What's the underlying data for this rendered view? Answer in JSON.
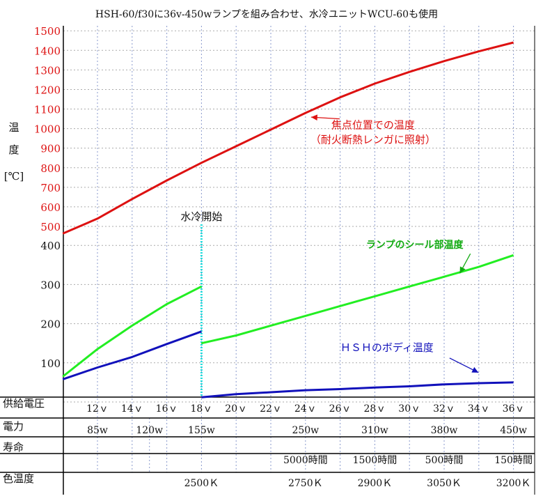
{
  "chart_data": {
    "type": "line",
    "title": "HSH-60/f30に36v-450wランプを組み合わせ、水冷ユニットWCU-60も使用",
    "ylabel": [
      "温",
      "度",
      "[℃]"
    ],
    "y_upper_ticks": [
      "1500",
      "1400",
      "1300",
      "1200",
      "1100",
      "1000",
      "900",
      "800",
      "700",
      "600",
      "500"
    ],
    "y_lower_ticks": [
      "400",
      "300",
      "200",
      "100"
    ],
    "x": {
      "row_label": "供給電圧",
      "ticks": [
        "12ｖ",
        "14ｖ",
        "16ｖ",
        "18ｖ",
        "20ｖ",
        "22ｖ",
        "24ｖ",
        "26ｖ",
        "28ｖ",
        "30ｖ",
        "32ｖ",
        "34ｖ",
        "36ｖ"
      ],
      "values": [
        12,
        14,
        16,
        18,
        20,
        22,
        24,
        26,
        28,
        30,
        32,
        34,
        36
      ],
      "range": [
        10,
        37
      ]
    },
    "bottom_rows": {
      "power": {
        "label": "電力",
        "items": [
          {
            "v": 12,
            "text": "85w"
          },
          {
            "v": 15,
            "text": "120w"
          },
          {
            "v": 18,
            "text": "155w"
          },
          {
            "v": 24,
            "text": "250w"
          },
          {
            "v": 28,
            "text": "310w"
          },
          {
            "v": 32,
            "text": "380w"
          },
          {
            "v": 36,
            "text": "450w"
          }
        ]
      },
      "life": {
        "label": "寿命",
        "items": [
          {
            "v": 24,
            "text": "5000時間"
          },
          {
            "v": 28,
            "text": "1500時間"
          },
          {
            "v": 32,
            "text": "500時間"
          },
          {
            "v": 36,
            "text": "150時間"
          }
        ]
      },
      "color_temp": {
        "label": "色温度",
        "items": [
          {
            "v": 18,
            "text": "2500Ｋ"
          },
          {
            "v": 24,
            "text": "2750Ｋ"
          },
          {
            "v": 28,
            "text": "2900Ｋ"
          },
          {
            "v": 32,
            "text": "3050Ｋ"
          },
          {
            "v": 36,
            "text": "3200Ｋ"
          }
        ]
      }
    },
    "water_cooling_label": "水冷開始",
    "water_cooling_x": 18,
    "series": [
      {
        "name": "焦点位置での温度",
        "sub": "（耐火断熱レンガに照射）",
        "color": "#dd1111",
        "points": [
          [
            10,
            430
          ],
          [
            12,
            540
          ],
          [
            14,
            640
          ],
          [
            16,
            735
          ],
          [
            18,
            825
          ],
          [
            20,
            910
          ],
          [
            22,
            995
          ],
          [
            24,
            1080
          ],
          [
            26,
            1160
          ],
          [
            28,
            1230
          ],
          [
            30,
            1290
          ],
          [
            32,
            1345
          ],
          [
            34,
            1395
          ],
          [
            36,
            1440
          ]
        ]
      },
      {
        "name": "ランプのシール部温度",
        "color": "#22ee22",
        "segments": [
          [
            [
              10,
              65
            ],
            [
              12,
              135
            ],
            [
              14,
              195
            ],
            [
              16,
              250
            ],
            [
              18,
              295
            ]
          ],
          [
            [
              18,
              150
            ],
            [
              20,
              170
            ],
            [
              22,
              195
            ],
            [
              24,
              220
            ],
            [
              26,
              245
            ],
            [
              28,
              270
            ],
            [
              30,
              295
            ],
            [
              32,
              320
            ],
            [
              34,
              345
            ],
            [
              36,
              375
            ]
          ]
        ]
      },
      {
        "name": "ＨＳＨのボディ温度",
        "color": "#1111bb",
        "segments": [
          [
            [
              10,
              58
            ],
            [
              12,
              88
            ],
            [
              14,
              115
            ],
            [
              16,
              148
            ],
            [
              18,
              180
            ]
          ],
          [
            [
              18,
              12
            ],
            [
              20,
              20
            ],
            [
              22,
              25
            ],
            [
              24,
              30
            ],
            [
              26,
              33
            ],
            [
              28,
              37
            ],
            [
              30,
              40
            ],
            [
              32,
              45
            ],
            [
              34,
              48
            ],
            [
              36,
              50
            ]
          ]
        ]
      }
    ],
    "annotations": {
      "red": {
        "v": 24,
        "t": 1080,
        "lx": 27.9,
        "ly": 1000
      },
      "green": {
        "v": 32.5,
        "t": 325,
        "lx": 30.3,
        "ly": 393
      },
      "blue": {
        "v": 33.5,
        "t": 75,
        "lx": 28.7,
        "ly": 130
      }
    }
  }
}
